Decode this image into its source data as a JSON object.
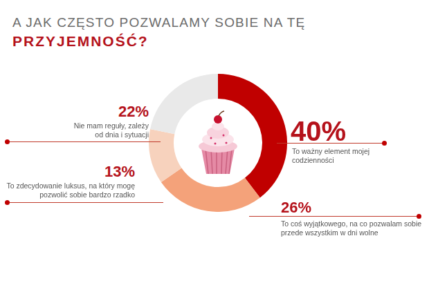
{
  "chart_data": {
    "type": "doughnut",
    "title": [
      "A JAK CZĘSTO POZWALAMY SOBIE NA TĘ",
      "PRZYJEMNOŚĆ?"
    ],
    "categories": [
      "To ważny element mojej codzienności",
      "To coś wyjątkowego, na co pozwalam sobie przede wszystkim w dni wolne",
      "To zdecydowanie luksus, na który mogę pozwolić sobie bardzo rzadko",
      "Nie mam reguły, zależy od dnia i sytuacji"
    ],
    "values": [
      40,
      26,
      13,
      22
    ],
    "value_labels": [
      "40%",
      "26%",
      "13%",
      "22%"
    ],
    "colors": [
      "#c00000",
      "#f4a27a",
      "#f7d2bd",
      "#e9e9e9"
    ],
    "data_labels": true
  }
}
